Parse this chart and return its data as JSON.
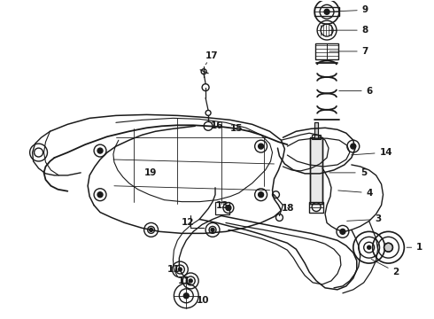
{
  "background_color": "#ffffff",
  "line_color": "#1a1a1a",
  "figsize": [
    4.9,
    3.6
  ],
  "dpi": 100,
  "label_fontsize": 7.5,
  "lw_main": 1.0,
  "lw_thin": 0.7
}
